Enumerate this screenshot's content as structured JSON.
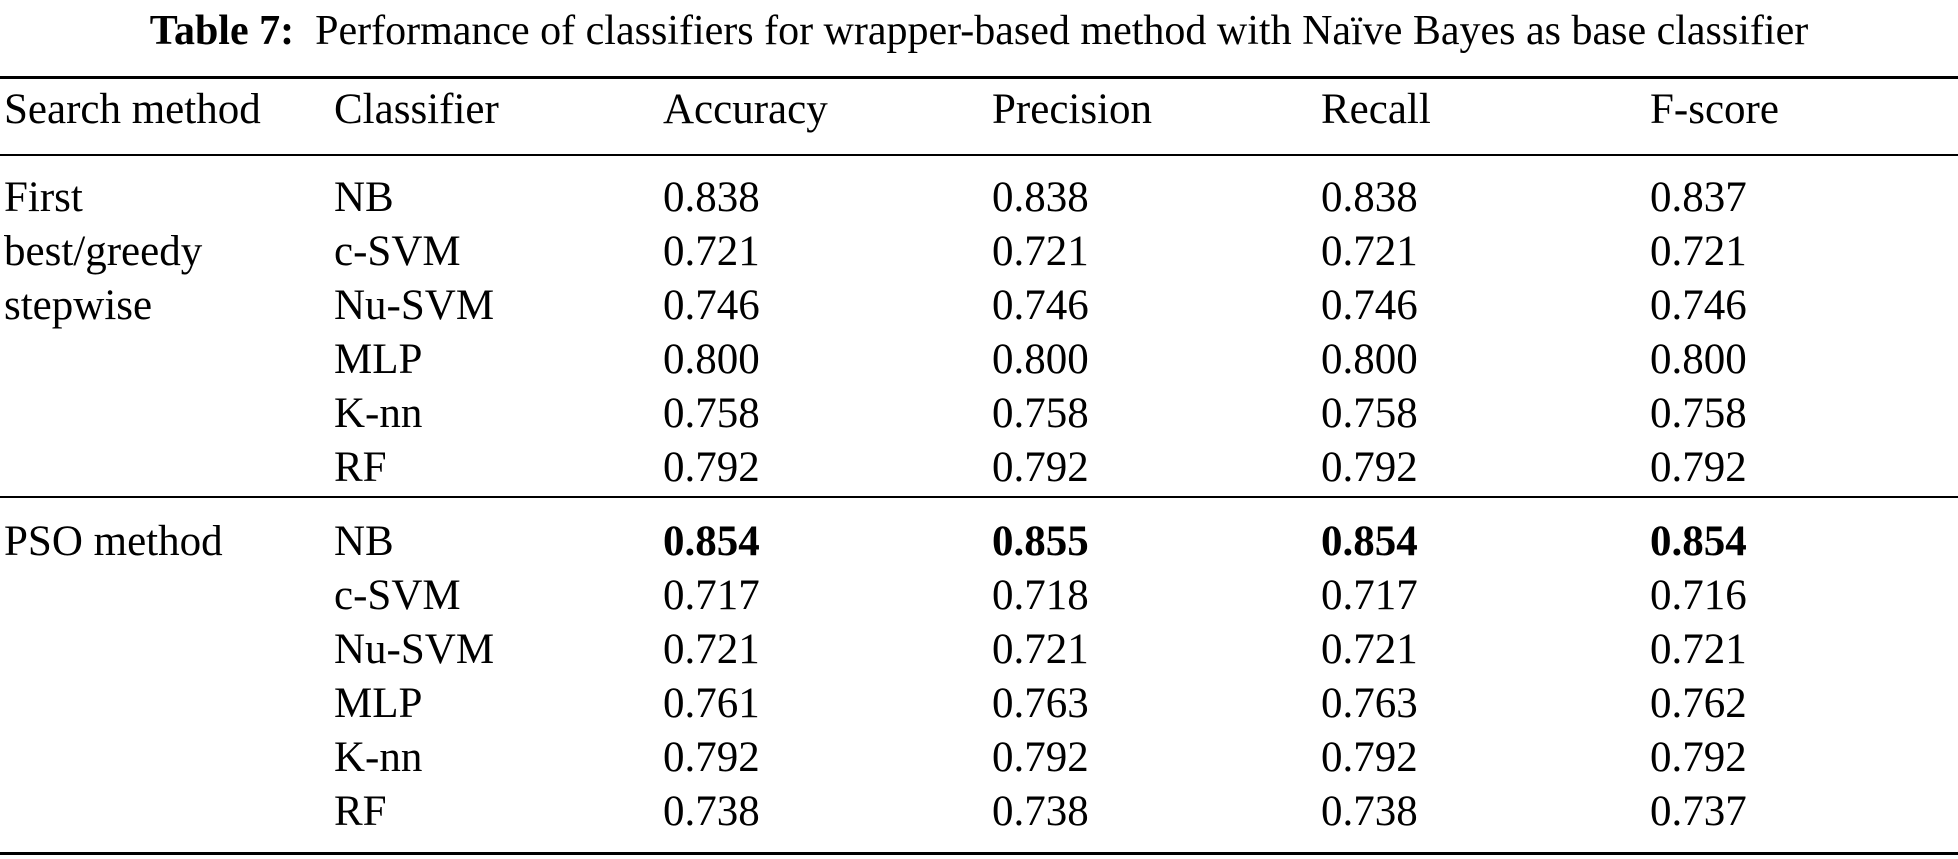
{
  "caption": {
    "label": "Table 7:",
    "text": "Performance of classifiers for wrapper-based method with Naïve Bayes as base classifier"
  },
  "header": [
    "Search method",
    "Classifier",
    "Accuracy",
    "Precision",
    "Recall",
    "F-score"
  ],
  "groups": [
    {
      "method_lines": [
        "First",
        "best/greedy",
        "stepwise"
      ],
      "rows": [
        {
          "classifier": "NB",
          "accuracy": "0.838",
          "precision": "0.838",
          "recall": "0.838",
          "fscore": "0.837"
        },
        {
          "classifier": "c-SVM",
          "accuracy": "0.721",
          "precision": "0.721",
          "recall": "0.721",
          "fscore": "0.721"
        },
        {
          "classifier": "Nu-SVM",
          "accuracy": "0.746",
          "precision": "0.746",
          "recall": "0.746",
          "fscore": "0.746"
        },
        {
          "classifier": "MLP",
          "accuracy": "0.800",
          "precision": "0.800",
          "recall": "0.800",
          "fscore": "0.800"
        },
        {
          "classifier": "K-nn",
          "accuracy": "0.758",
          "precision": "0.758",
          "recall": "0.758",
          "fscore": "0.758"
        },
        {
          "classifier": "RF",
          "accuracy": "0.792",
          "precision": "0.792",
          "recall": "0.792",
          "fscore": "0.792"
        }
      ]
    },
    {
      "method_lines": [
        "PSO method"
      ],
      "rows": [
        {
          "classifier": "NB",
          "accuracy": "0.854",
          "precision": "0.855",
          "recall": "0.854",
          "fscore": "0.854",
          "bold": true
        },
        {
          "classifier": "c-SVM",
          "accuracy": "0.717",
          "precision": "0.718",
          "recall": "0.717",
          "fscore": "0.716"
        },
        {
          "classifier": "Nu-SVM",
          "accuracy": "0.721",
          "precision": "0.721",
          "recall": "0.721",
          "fscore": "0.721"
        },
        {
          "classifier": "MLP",
          "accuracy": "0.761",
          "precision": "0.763",
          "recall": "0.763",
          "fscore": "0.762"
        },
        {
          "classifier": "K-nn",
          "accuracy": "0.792",
          "precision": "0.792",
          "recall": "0.792",
          "fscore": "0.792"
        },
        {
          "classifier": "RF",
          "accuracy": "0.738",
          "precision": "0.738",
          "recall": "0.738",
          "fscore": "0.737"
        }
      ]
    }
  ]
}
